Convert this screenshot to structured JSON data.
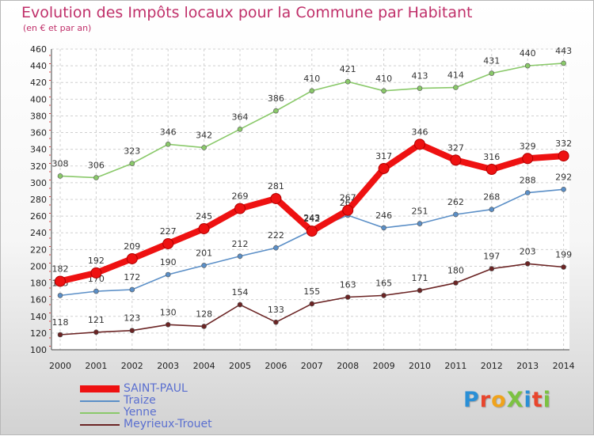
{
  "title": "Evolution des Impôts locaux pour la Commune par Habitant",
  "subtitle": "(en € et par an)",
  "logo": {
    "text": "ProXiti",
    "letter_colors": [
      "#2a8fd6",
      "#e8452c",
      "#f0a31b",
      "#7cc242",
      "#2a8fd6",
      "#e8452c",
      "#7cc242"
    ]
  },
  "chart_data": {
    "type": "line",
    "title": "Evolution des Impôts locaux pour la Commune par Habitant",
    "subtitle": "(en € et par an)",
    "xlabel": "",
    "ylabel": "",
    "categories": [
      "2000",
      "2001",
      "2002",
      "2003",
      "2004",
      "2005",
      "2006",
      "2007",
      "2008",
      "2009",
      "2010",
      "2011",
      "2012",
      "2013",
      "2014"
    ],
    "ylim": [
      100,
      460
    ],
    "yticks": [
      100,
      120,
      140,
      160,
      180,
      200,
      220,
      240,
      260,
      280,
      300,
      320,
      340,
      360,
      380,
      400,
      420,
      440,
      460
    ],
    "grid": true,
    "legend_position": "bottom-left",
    "series": [
      {
        "name": "SAINT-PAUL",
        "color": "#ee1111",
        "emphasis": true,
        "values": [
          182,
          192,
          209,
          227,
          245,
          269,
          281,
          242,
          267,
          317,
          346,
          327,
          316,
          329,
          332
        ]
      },
      {
        "name": "Traize",
        "color": "#5b8fc7",
        "values": [
          165,
          170,
          172,
          190,
          201,
          212,
          222,
          243,
          261,
          246,
          251,
          262,
          268,
          288,
          292
        ]
      },
      {
        "name": "Yenne",
        "color": "#8ac96a",
        "values": [
          308,
          306,
          323,
          346,
          342,
          364,
          386,
          410,
          421,
          410,
          413,
          414,
          431,
          440,
          443
        ]
      },
      {
        "name": "Meyrieux-Trouet",
        "color": "#6b2424",
        "values": [
          118,
          121,
          123,
          130,
          128,
          154,
          133,
          155,
          163,
          165,
          171,
          180,
          197,
          203,
          199
        ]
      }
    ]
  }
}
